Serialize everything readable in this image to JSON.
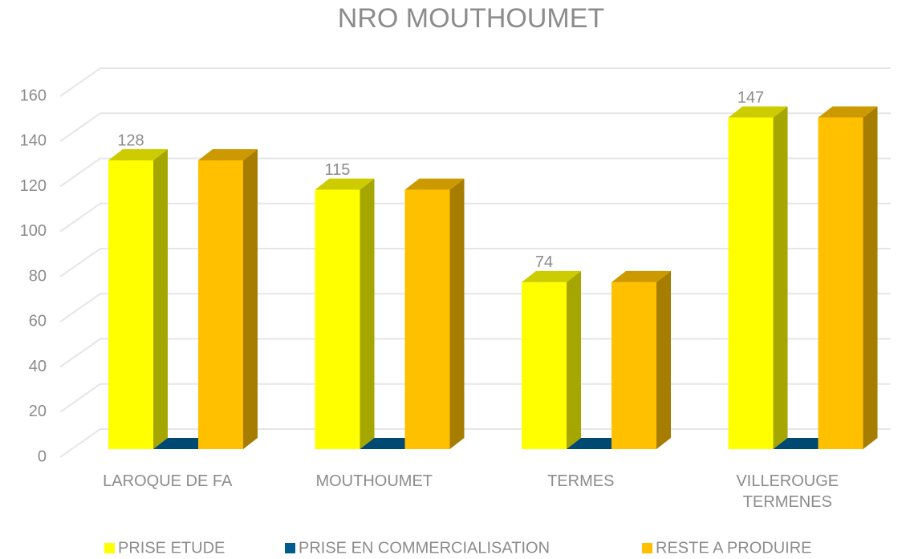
{
  "chart_data": {
    "type": "bar3d",
    "title": "NRO MOUTHOUMET",
    "categories": [
      "LAROQUE DE FA",
      "MOUTHOUMET",
      "TERMES",
      "VILLEROUGE TERMENES"
    ],
    "series": [
      {
        "name": "PRISE ETUDE",
        "color": "#ffff00",
        "values": [
          128,
          115,
          74,
          147
        ],
        "show_labels": true
      },
      {
        "name": "PRISE EN COMMERCIALISATION",
        "color": "#005b8e",
        "values": [
          0,
          0,
          0,
          0
        ]
      },
      {
        "name": "RESTE A PRODUIRE",
        "color": "#ffc000",
        "values": [
          128,
          115,
          74,
          147
        ]
      }
    ],
    "ylim": [
      0,
      160
    ],
    "yticks": [
      0,
      20,
      40,
      60,
      80,
      100,
      120,
      140,
      160
    ],
    "grid": true,
    "legend": "bottom"
  }
}
